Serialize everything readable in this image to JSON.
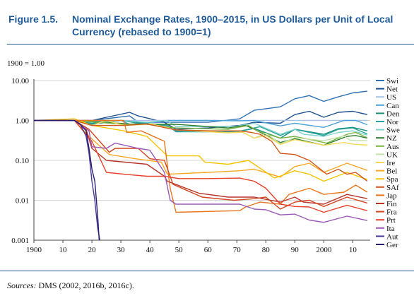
{
  "figure": {
    "label": "Figure 1.5.",
    "title": "Nominal Exchange Rates, 1900–2015, in US Dollars per Unit of Local Currency (rebased to 1900=1)",
    "unit_label": "1900 = 1.00",
    "sources_prefix": "Sources:",
    "sources_text": "DMS (2002, 2016b, 2016c)."
  },
  "chart_data": {
    "type": "line",
    "title": "Nominal Exchange Rates, 1900–2015, in US Dollars per Unit of Local Currency (rebased to 1900=1)",
    "xlabel": "",
    "ylabel": "1900 = 1.00",
    "y_scale": "log",
    "ylim": [
      0.001,
      10
    ],
    "xlim": [
      1900,
      2016
    ],
    "grid": true,
    "legend_position": "right",
    "x_ticks": [
      1900,
      1910,
      1920,
      1930,
      1940,
      1950,
      1960,
      1970,
      1980,
      1990,
      2000,
      2010
    ],
    "x_tick_labels": [
      "1900",
      "10",
      "20",
      "30",
      "40",
      "50",
      "60",
      "70",
      "80",
      "90",
      "2000",
      "10"
    ],
    "y_ticks": [
      10,
      1,
      0.1,
      0.01,
      0.001
    ],
    "y_tick_labels": [
      "10.00",
      "1.00",
      "0.10",
      "0.01",
      "0.001"
    ],
    "series": [
      {
        "name": "Swi",
        "color": "#2f6fb5",
        "x": [
          1900,
          1914,
          1920,
          1933,
          1936,
          1945,
          1960,
          1971,
          1976,
          1985,
          1990,
          1995,
          2000,
          2005,
          2010,
          2015
        ],
        "y": [
          1,
          1,
          1,
          1.3,
          0.9,
          0.9,
          0.9,
          1.1,
          1.8,
          2.2,
          3.5,
          4.2,
          3.0,
          3.9,
          4.9,
          5.4
        ]
      },
      {
        "name": "Net",
        "color": "#1d4e8f",
        "x": [
          1900,
          1914,
          1920,
          1933,
          1936,
          1945,
          1949,
          1960,
          1971,
          1976,
          1985,
          1990,
          1995,
          2000,
          2005,
          2010,
          2015
        ],
        "y": [
          1,
          1,
          1,
          1.6,
          1.3,
          0.9,
          0.6,
          0.65,
          0.75,
          0.9,
          0.85,
          1.4,
          1.7,
          1.2,
          1.6,
          1.7,
          1.4
        ]
      },
      {
        "name": "US",
        "color": "#a9c3e6",
        "x": [
          1900,
          2015
        ],
        "y": [
          1,
          1
        ]
      },
      {
        "name": "Can",
        "color": "#4aa3d9",
        "x": [
          1900,
          1914,
          1920,
          1930,
          1933,
          1946,
          1960,
          1971,
          1976,
          1985,
          1990,
          2000,
          2007,
          2011,
          2015
        ],
        "y": [
          1,
          1,
          0.95,
          1,
          0.8,
          1,
          1,
          0.98,
          1.0,
          0.73,
          0.85,
          0.67,
          1.0,
          1.0,
          0.78
        ]
      },
      {
        "name": "Den",
        "color": "#1a8f7a",
        "x": [
          1900,
          1914,
          1920,
          1930,
          1939,
          1946,
          1949,
          1960,
          1970,
          1976,
          1985,
          1990,
          2000,
          2005,
          2010,
          2015
        ],
        "y": [
          1,
          1,
          0.85,
          1,
          0.8,
          0.75,
          0.55,
          0.55,
          0.52,
          0.63,
          0.36,
          0.6,
          0.45,
          0.62,
          0.67,
          0.55
        ]
      },
      {
        "name": "Nor",
        "color": "#2aa3a0",
        "x": [
          1900,
          1914,
          1920,
          1930,
          1939,
          1946,
          1949,
          1960,
          1970,
          1978,
          1985,
          1990,
          2000,
          2005,
          2010,
          2015
        ],
        "y": [
          1,
          1,
          0.8,
          1,
          0.85,
          0.75,
          0.52,
          0.52,
          0.52,
          0.7,
          0.42,
          0.6,
          0.42,
          0.6,
          0.65,
          0.46
        ]
      },
      {
        "name": "Swe",
        "color": "#7fd3cc",
        "x": [
          1900,
          1914,
          1920,
          1930,
          1939,
          1946,
          1949,
          1960,
          1970,
          1976,
          1985,
          1990,
          1993,
          2000,
          2005,
          2010,
          2015
        ],
        "y": [
          1,
          1,
          0.9,
          1,
          0.9,
          1.0,
          0.7,
          0.7,
          0.72,
          0.85,
          0.45,
          0.6,
          0.45,
          0.4,
          0.5,
          0.55,
          0.43
        ]
      },
      {
        "name": "NZ",
        "color": "#2e7d32",
        "x": [
          1900,
          1914,
          1933,
          1939,
          1949,
          1967,
          1973,
          1976,
          1985,
          1990,
          2000,
          2008,
          2011,
          2015
        ],
        "y": [
          1,
          1,
          0.82,
          0.8,
          0.8,
          0.65,
          0.75,
          0.6,
          0.28,
          0.35,
          0.24,
          0.4,
          0.42,
          0.36
        ]
      },
      {
        "name": "Aus",
        "color": "#7cb342",
        "x": [
          1900,
          1914,
          1931,
          1939,
          1949,
          1967,
          1974,
          1977,
          1985,
          1990,
          2001,
          2008,
          2011,
          2015
        ],
        "y": [
          1,
          1,
          0.8,
          0.8,
          0.65,
          0.6,
          0.75,
          0.55,
          0.36,
          0.4,
          0.27,
          0.45,
          0.5,
          0.37
        ]
      },
      {
        "name": "UK",
        "color": "#c5e1a5",
        "x": [
          1900,
          1914,
          1920,
          1925,
          1931,
          1939,
          1940,
          1949,
          1967,
          1972,
          1976,
          1980,
          1985,
          1990,
          2000,
          2007,
          2009,
          2015
        ],
        "y": [
          1,
          1,
          0.75,
          1,
          0.75,
          0.8,
          0.83,
          0.58,
          0.49,
          0.51,
          0.36,
          0.48,
          0.26,
          0.37,
          0.31,
          0.41,
          0.32,
          0.31
        ]
      },
      {
        "name": "Ire",
        "color": "#f3d95a",
        "x": [
          1900,
          1914,
          1920,
          1925,
          1931,
          1939,
          1940,
          1949,
          1967,
          1972,
          1976,
          1980,
          1985,
          1990,
          2000,
          2007,
          2009,
          2015
        ],
        "y": [
          1,
          1,
          0.75,
          1,
          0.75,
          0.8,
          0.83,
          0.58,
          0.49,
          0.51,
          0.36,
          0.42,
          0.25,
          0.33,
          0.24,
          0.28,
          0.26,
          0.24
        ]
      },
      {
        "name": "Bel",
        "color": "#f7a823",
        "x": [
          1900,
          1914,
          1919,
          1926,
          1935,
          1944,
          1946,
          1960,
          1971,
          1976,
          1985,
          1990,
          1995,
          2000,
          2008,
          2015
        ],
        "y": [
          1,
          1,
          0.4,
          0.14,
          0.11,
          0.09,
          0.045,
          0.05,
          0.055,
          0.06,
          0.038,
          0.07,
          0.085,
          0.05,
          0.085,
          0.056
        ]
      },
      {
        "name": "Spa",
        "color": "#f5c400",
        "x": [
          1900,
          1914,
          1920,
          1931,
          1936,
          1939,
          1946,
          1957,
          1959,
          1967,
          1974,
          1976,
          1983,
          1990,
          1995,
          2000,
          2008,
          2015
        ],
        "y": [
          1,
          1.1,
          0.75,
          0.55,
          0.45,
          0.4,
          0.13,
          0.13,
          0.09,
          0.08,
          0.1,
          0.08,
          0.036,
          0.055,
          0.045,
          0.03,
          0.05,
          0.033
        ]
      },
      {
        "name": "SAf",
        "color": "#d2571a",
        "x": [
          1900,
          1914,
          1920,
          1931,
          1939,
          1949,
          1961,
          1967,
          1971,
          1975,
          1978,
          1982,
          1985,
          1990,
          1995,
          2001,
          2005,
          2008,
          2011,
          2015
        ],
        "y": [
          1,
          1,
          0.75,
          0.75,
          0.82,
          0.58,
          0.55,
          0.55,
          0.55,
          0.5,
          0.45,
          0.3,
          0.15,
          0.14,
          0.1,
          0.045,
          0.06,
          0.045,
          0.05,
          0.03
        ]
      },
      {
        "name": "Jap",
        "color": "#e9751c",
        "x": [
          1900,
          1914,
          1920,
          1931,
          1932,
          1937,
          1945,
          1947,
          1949,
          1971,
          1973,
          1978,
          1985,
          1988,
          1995,
          2000,
          2007,
          2011,
          2015
        ],
        "y": [
          1,
          1,
          1.0,
          1.0,
          0.5,
          0.55,
          0.3,
          0.02,
          0.005,
          0.0055,
          0.0068,
          0.009,
          0.008,
          0.014,
          0.02,
          0.014,
          0.016,
          0.024,
          0.016
        ]
      },
      {
        "name": "Fin",
        "color": "#b8342a",
        "x": [
          1900,
          1914,
          1918,
          1920,
          1925,
          1939,
          1945,
          1946,
          1957,
          1967,
          1976,
          1985,
          1990,
          1993,
          2000,
          2008,
          2015
        ],
        "y": [
          1,
          1,
          0.6,
          0.2,
          0.1,
          0.08,
          0.04,
          0.03,
          0.015,
          0.012,
          0.012,
          0.009,
          0.012,
          0.009,
          0.008,
          0.014,
          0.011
        ]
      },
      {
        "name": "Fra",
        "color": "#d2451f",
        "x": [
          1900,
          1914,
          1919,
          1926,
          1928,
          1936,
          1940,
          1945,
          1948,
          1958,
          1969,
          1976,
          1980,
          1985,
          1990,
          1995,
          2000,
          2008,
          2015
        ],
        "y": [
          1,
          1,
          0.6,
          0.16,
          0.2,
          0.2,
          0.11,
          0.1,
          0.025,
          0.012,
          0.01,
          0.011,
          0.012,
          0.006,
          0.009,
          0.01,
          0.007,
          0.012,
          0.0085
        ]
      },
      {
        "name": "Prt",
        "color": "#e8402a",
        "x": [
          1900,
          1914,
          1920,
          1925,
          1931,
          1939,
          1945,
          1950,
          1960,
          1971,
          1976,
          1980,
          1985,
          1990,
          1995,
          2000,
          2008,
          2015
        ],
        "y": [
          1,
          1,
          0.3,
          0.05,
          0.045,
          0.04,
          0.04,
          0.035,
          0.035,
          0.036,
          0.03,
          0.02,
          0.008,
          0.007,
          0.0068,
          0.005,
          0.0075,
          0.0055
        ]
      },
      {
        "name": "Ita",
        "color": "#9b59b6",
        "x": [
          1900,
          1914,
          1919,
          1920,
          1925,
          1928,
          1936,
          1940,
          1945,
          1947,
          1949,
          1960,
          1971,
          1976,
          1980,
          1985,
          1990,
          1995,
          2000,
          2008,
          2015
        ],
        "y": [
          1,
          1,
          0.55,
          0.22,
          0.2,
          0.27,
          0.2,
          0.18,
          0.05,
          0.01,
          0.008,
          0.008,
          0.008,
          0.006,
          0.0058,
          0.0043,
          0.0045,
          0.0032,
          0.0028,
          0.004,
          0.0031
        ]
      },
      {
        "name": "Aut",
        "color": "#4a3a96",
        "x": [
          1900,
          1914,
          1916,
          1918,
          1919,
          1920,
          1921,
          1922,
          1923
        ],
        "y": [
          1,
          1,
          0.8,
          0.4,
          0.15,
          0.03,
          0.01,
          0.002,
          0.0008
        ]
      },
      {
        "name": "Ger",
        "color": "#2a1d6e",
        "x": [
          1900,
          1914,
          1916,
          1918,
          1919,
          1920,
          1921,
          1922,
          1922.6
        ],
        "y": [
          1,
          1,
          0.8,
          0.55,
          0.2,
          0.06,
          0.03,
          0.004,
          0.0008
        ]
      }
    ]
  }
}
